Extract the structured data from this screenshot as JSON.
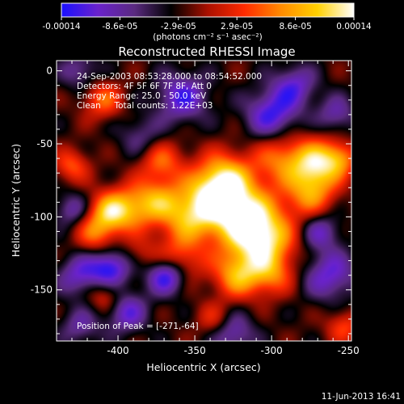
{
  "colorbar": {
    "tick_labels": [
      "-0.00014",
      "-8.6e-05",
      "-2.9e-05",
      "2.9e-05",
      "8.6e-05",
      "0.00014"
    ],
    "units_label": "(photons cm⁻² s⁻¹ asec⁻²)",
    "min": -0.00014,
    "max": 0.00014,
    "colors": [
      "#1a10ff",
      "#6a22cc",
      "#5a2a80",
      "#000000",
      "#aa1000",
      "#ff2a00",
      "#ff8a00",
      "#ffd000",
      "#ffffff"
    ]
  },
  "chart_data": {
    "type": "heatmap",
    "title": "Reconstructed RHESSI Image",
    "xlabel": "Heliocentric X (arcsec)",
    "ylabel": "Heliocentric Y (arcsec)",
    "xlim": [
      -440,
      -248
    ],
    "ylim": [
      -185,
      7
    ],
    "x_ticks": [
      -400,
      -350,
      -300,
      -250
    ],
    "x_tick_labels": [
      "-400",
      "-350",
      "-300",
      "-250"
    ],
    "y_ticks": [
      0,
      -50,
      -100,
      -150
    ],
    "y_tick_labels": [
      "0",
      "-50",
      "-100",
      "-150"
    ],
    "annotations": [
      "24-Sep-2003 08:53:28.000 to 08:54:52.000",
      "Detectors: 4F 5F 6F 7F 8F, Att 0",
      "Energy Range: 25.0 - 50.0 keV",
      "Clean     Total counts: 1.22E+03"
    ],
    "peak_label": "Position of Peak = [-271,-64]",
    "peak": [
      -271,
      -64
    ],
    "blobs": [
      {
        "x": -318,
        "y": -100,
        "v": 1.0,
        "s": 16
      },
      {
        "x": -337,
        "y": -85,
        "v": 0.8,
        "s": 14
      },
      {
        "x": -305,
        "y": -117,
        "v": 0.85,
        "s": 14
      },
      {
        "x": -355,
        "y": -100,
        "v": 0.7,
        "s": 13
      },
      {
        "x": -330,
        "y": -72,
        "v": 0.6,
        "s": 12
      },
      {
        "x": -271,
        "y": -64,
        "v": 0.95,
        "s": 12
      },
      {
        "x": -275,
        "y": -85,
        "v": 0.6,
        "s": 11
      },
      {
        "x": -295,
        "y": -60,
        "v": 0.55,
        "s": 12
      },
      {
        "x": -405,
        "y": -97,
        "v": 0.85,
        "s": 10
      },
      {
        "x": -388,
        "y": -93,
        "v": 0.6,
        "s": 11
      },
      {
        "x": -415,
        "y": -112,
        "v": 0.5,
        "s": 9
      },
      {
        "x": -372,
        "y": -62,
        "v": 0.55,
        "s": 10
      },
      {
        "x": -373,
        "y": -88,
        "v": 0.45,
        "s": 10
      },
      {
        "x": -360,
        "y": -130,
        "v": 0.55,
        "s": 11
      },
      {
        "x": -322,
        "y": -140,
        "v": 0.75,
        "s": 11
      },
      {
        "x": -300,
        "y": -140,
        "v": 0.5,
        "s": 10
      },
      {
        "x": -410,
        "y": -20,
        "v": 0.55,
        "s": 9
      },
      {
        "x": -430,
        "y": -65,
        "v": 0.5,
        "s": 8
      },
      {
        "x": -408,
        "y": -155,
        "v": 0.45,
        "s": 8
      },
      {
        "x": -255,
        "y": -60,
        "v": 0.5,
        "s": 8
      },
      {
        "x": -253,
        "y": -175,
        "v": 0.45,
        "s": 8
      },
      {
        "x": -338,
        "y": -170,
        "v": 0.35,
        "s": 8
      },
      {
        "x": -385,
        "y": -125,
        "v": 0.25,
        "s": 8
      },
      {
        "x": -405,
        "y": -135,
        "v": -0.75,
        "s": 9
      },
      {
        "x": -368,
        "y": -140,
        "v": -0.9,
        "s": 9
      },
      {
        "x": -395,
        "y": -165,
        "v": -0.6,
        "s": 10
      },
      {
        "x": -300,
        "y": -30,
        "v": -0.7,
        "s": 12
      },
      {
        "x": -285,
        "y": -10,
        "v": -0.55,
        "s": 10
      },
      {
        "x": -358,
        "y": -18,
        "v": -0.65,
        "s": 12
      },
      {
        "x": -262,
        "y": -140,
        "v": -0.6,
        "s": 12
      },
      {
        "x": -268,
        "y": -110,
        "v": -0.5,
        "s": 9
      },
      {
        "x": -425,
        "y": -140,
        "v": -0.55,
        "s": 10
      },
      {
        "x": -430,
        "y": -95,
        "v": -0.45,
        "s": 8
      },
      {
        "x": -325,
        "y": -180,
        "v": -0.5,
        "s": 10
      },
      {
        "x": -425,
        "y": -175,
        "v": -0.4,
        "s": 9
      },
      {
        "x": -425,
        "y": 0,
        "v": -0.4,
        "s": 9
      },
      {
        "x": -385,
        "y": -45,
        "v": -0.35,
        "s": 10
      },
      {
        "x": -258,
        "y": -30,
        "v": -0.45,
        "s": 9
      }
    ]
  },
  "footer": {
    "date": "11-Jun-2013 16:41"
  }
}
